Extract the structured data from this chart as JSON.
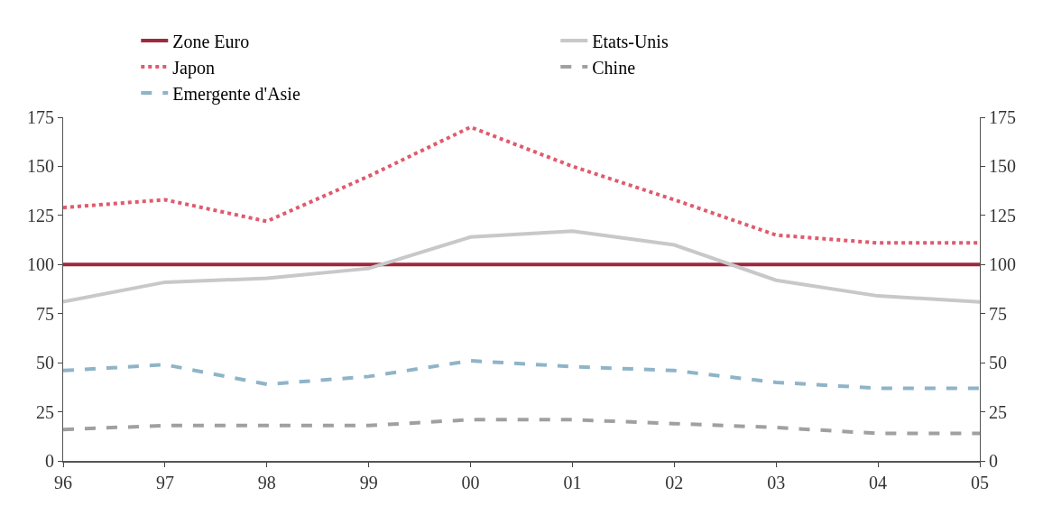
{
  "chart_data": {
    "type": "line",
    "categories": [
      "96",
      "97",
      "98",
      "99",
      "00",
      "01",
      "02",
      "03",
      "04",
      "05"
    ],
    "series": [
      {
        "name": "Zone Euro",
        "color": "#a0283c",
        "line_style": "solid",
        "values": [
          100,
          100,
          100,
          100,
          100,
          100,
          100,
          100,
          100,
          100
        ]
      },
      {
        "name": "Etats-Unis",
        "color": "#c8c8c8",
        "line_style": "solid",
        "values": [
          81,
          91,
          93,
          98,
          114,
          117,
          110,
          92,
          84,
          81
        ]
      },
      {
        "name": "Japon",
        "color": "#e05a6e",
        "line_style": "dotted",
        "values": [
          129,
          133,
          122,
          145,
          170,
          150,
          133,
          115,
          111,
          111
        ]
      },
      {
        "name": "Chine",
        "color": "#a0a0a0",
        "line_style": "dashed",
        "values": [
          16,
          18,
          18,
          18,
          21,
          21,
          19,
          17,
          14,
          14
        ]
      },
      {
        "name": "Emergente d'Asie",
        "color": "#8fb4c8",
        "line_style": "dashed",
        "values": [
          46,
          49,
          39,
          43,
          51,
          48,
          46,
          40,
          37,
          37
        ]
      }
    ],
    "ylim": [
      0,
      175
    ],
    "yticks": [
      0,
      25,
      50,
      75,
      100,
      125,
      150,
      175
    ],
    "y2lim": [
      0,
      175
    ],
    "y2ticks": [
      0,
      25,
      50,
      75,
      100,
      125,
      150,
      175
    ],
    "legend": "top",
    "marker": "none"
  }
}
